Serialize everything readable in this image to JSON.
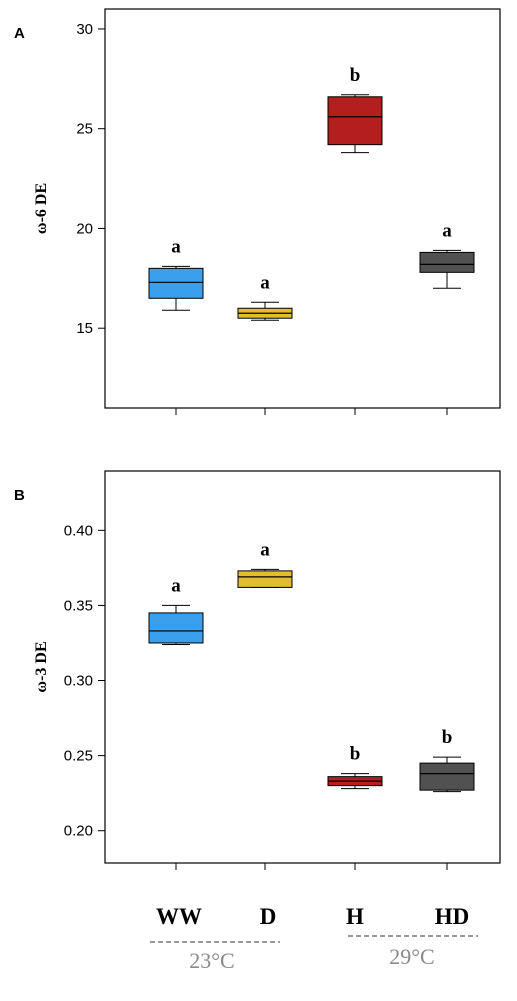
{
  "categories": [
    "WW",
    "D",
    "H",
    "HD"
  ],
  "colors": {
    "WW": "#3aa0ee",
    "D": "#e2bd2c",
    "H": "#b41e1e",
    "HD": "#515151",
    "temp_line": "#9a9a9a"
  },
  "groups": [
    {
      "label": "23°C",
      "members": [
        "WW",
        "D"
      ]
    },
    {
      "label": "29°C",
      "members": [
        "H",
        "HD"
      ]
    }
  ],
  "chart_data": [
    {
      "type": "box",
      "panel": "A",
      "ylabel": "ω-6 DE",
      "ylim": [
        11,
        31
      ],
      "yticks": [
        15,
        20,
        25,
        30
      ],
      "ytick_labels": [
        "15",
        "20",
        "25",
        "30"
      ],
      "categories": [
        "WW",
        "D",
        "H",
        "HD"
      ],
      "boxes": [
        {
          "category": "WW",
          "min": 15.9,
          "q1": 16.5,
          "median": 17.3,
          "q3": 18.0,
          "max": 18.1,
          "label": "a"
        },
        {
          "category": "D",
          "min": 15.4,
          "q1": 15.5,
          "median": 15.75,
          "q3": 16.0,
          "max": 16.3,
          "label": "a"
        },
        {
          "category": "H",
          "min": 23.8,
          "q1": 24.2,
          "median": 25.6,
          "q3": 26.6,
          "max": 26.7,
          "label": "b"
        },
        {
          "category": "HD",
          "min": 17.0,
          "q1": 17.8,
          "median": 18.2,
          "q3": 18.8,
          "max": 18.9,
          "label": "a"
        }
      ]
    },
    {
      "type": "box",
      "panel": "B",
      "ylabel": "ω-3 DE",
      "ylim": [
        0.1785,
        0.4395
      ],
      "yticks": [
        0.2,
        0.25,
        0.3,
        0.35,
        0.4
      ],
      "ytick_labels": [
        "0.20",
        "0.25",
        "0.30",
        "0.35",
        "0.40"
      ],
      "categories": [
        "WW",
        "D",
        "H",
        "HD"
      ],
      "boxes": [
        {
          "category": "WW",
          "min": 0.324,
          "q1": 0.325,
          "median": 0.333,
          "q3": 0.345,
          "max": 0.35,
          "label": "a"
        },
        {
          "category": "D",
          "min": 0.362,
          "q1": 0.362,
          "median": 0.369,
          "q3": 0.373,
          "max": 0.374,
          "label": "a"
        },
        {
          "category": "H",
          "min": 0.228,
          "q1": 0.23,
          "median": 0.233,
          "q3": 0.236,
          "max": 0.238,
          "label": "b"
        },
        {
          "category": "HD",
          "min": 0.226,
          "q1": 0.227,
          "median": 0.238,
          "q3": 0.245,
          "max": 0.249,
          "label": "b"
        }
      ]
    }
  ]
}
